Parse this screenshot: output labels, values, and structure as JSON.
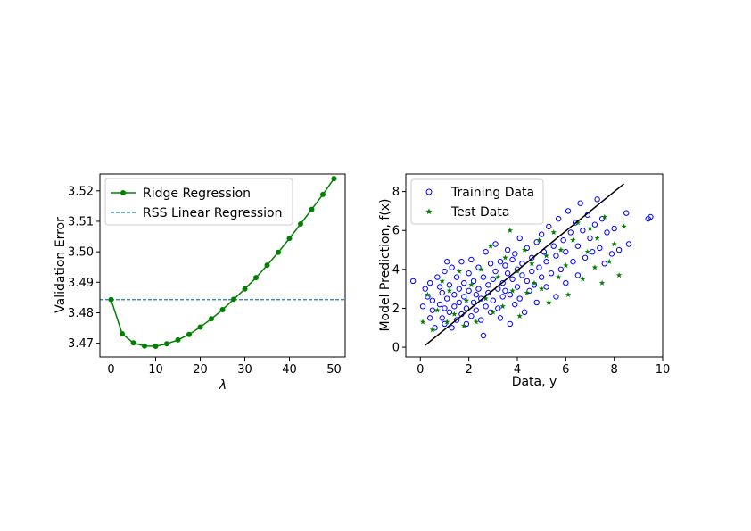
{
  "chart_data": [
    {
      "type": "line",
      "title": "",
      "xlabel": "λ",
      "ylabel": "Validation Error",
      "xlim": [
        -2.5,
        52.5
      ],
      "ylim": [
        3.4655,
        3.5255
      ],
      "xticks": [
        0,
        10,
        20,
        30,
        40,
        50
      ],
      "yticks": [
        3.47,
        3.48,
        3.49,
        3.5,
        3.51,
        3.52
      ],
      "xtick_labels": [
        "0",
        "10",
        "20",
        "30",
        "40",
        "50"
      ],
      "ytick_labels": [
        "3.47",
        "3.48",
        "3.49",
        "3.50",
        "3.51",
        "3.52"
      ],
      "grid": false,
      "legend_position": "upper-left",
      "series": [
        {
          "name": "Ridge Regression",
          "style": "solid line with circle markers",
          "color": "#008000",
          "x": [
            0,
            2.5,
            5,
            7.5,
            10,
            12.5,
            15,
            17.5,
            20,
            22.5,
            25,
            27.5,
            30,
            32.5,
            35,
            37.5,
            40,
            42.5,
            45,
            47.5,
            50
          ],
          "y": [
            3.4843,
            3.4731,
            3.4701,
            3.4691,
            3.469,
            3.4698,
            3.4711,
            3.4729,
            3.4753,
            3.478,
            3.481,
            3.4844,
            3.4878,
            3.4915,
            3.4956,
            3.4998,
            3.5044,
            3.5091,
            3.5139,
            3.5188,
            3.524
          ]
        },
        {
          "name": "RSS Linear Regression",
          "style": "dashed horizontal line",
          "color": "#1f77b4",
          "y": 3.4843
        }
      ]
    },
    {
      "type": "scatter",
      "title": "",
      "xlabel": "Data, y",
      "ylabel": "Model Prediction, f(x)",
      "xlim": [
        -0.6,
        10.0
      ],
      "ylim": [
        -0.5,
        8.9
      ],
      "xticks": [
        0,
        2,
        4,
        6,
        8,
        10
      ],
      "yticks": [
        0,
        2,
        4,
        6,
        8
      ],
      "xtick_labels": [
        "0",
        "2",
        "4",
        "6",
        "8",
        "10"
      ],
      "ytick_labels": [
        "0",
        "2",
        "4",
        "6",
        "8"
      ],
      "grid": false,
      "legend_position": "upper-left",
      "series": [
        {
          "name": "Training Data",
          "marker": "open circle",
          "color": "#0000ff",
          "points": [
            [
              -0.3,
              3.4
            ],
            [
              0.1,
              2.1
            ],
            [
              0.2,
              3.0
            ],
            [
              0.3,
              2.6
            ],
            [
              0.4,
              1.5
            ],
            [
              0.4,
              3.3
            ],
            [
              0.5,
              1.9
            ],
            [
              0.5,
              2.4
            ],
            [
              0.6,
              1.0
            ],
            [
              0.7,
              3.6
            ],
            [
              0.8,
              2.2
            ],
            [
              0.8,
              3.1
            ],
            [
              0.9,
              1.5
            ],
            [
              0.9,
              2.8
            ],
            [
              1.0,
              1.2
            ],
            [
              1.0,
              2.0
            ],
            [
              1.0,
              3.9
            ],
            [
              1.1,
              4.4
            ],
            [
              1.1,
              2.5
            ],
            [
              1.2,
              1.8
            ],
            [
              1.2,
              3.2
            ],
            [
              1.3,
              1.0
            ],
            [
              1.3,
              4.1
            ],
            [
              1.4,
              2.7
            ],
            [
              1.4,
              2.1
            ],
            [
              1.5,
              3.6
            ],
            [
              1.5,
              1.4
            ],
            [
              1.6,
              2.3
            ],
            [
              1.6,
              3.0
            ],
            [
              1.7,
              4.4
            ],
            [
              1.7,
              1.7
            ],
            [
              1.8,
              2.6
            ],
            [
              1.8,
              3.3
            ],
            [
              1.9,
              1.2
            ],
            [
              1.9,
              2.0
            ],
            [
              2.0,
              3.8
            ],
            [
              2.0,
              2.9
            ],
            [
              2.1,
              1.6
            ],
            [
              2.1,
              4.5
            ],
            [
              2.2,
              2.3
            ],
            [
              2.2,
              3.4
            ],
            [
              2.3,
              1.9
            ],
            [
              2.3,
              2.7
            ],
            [
              2.4,
              4.1
            ],
            [
              2.4,
              3.0
            ],
            [
              2.5,
              1.4
            ],
            [
              2.5,
              2.5
            ],
            [
              2.6,
              3.6
            ],
            [
              2.6,
              0.6
            ],
            [
              2.7,
              2.1
            ],
            [
              2.7,
              4.9
            ],
            [
              2.8,
              3.2
            ],
            [
              2.8,
              2.8
            ],
            [
              2.9,
              1.8
            ],
            [
              2.9,
              4.3
            ],
            [
              3.0,
              3.5
            ],
            [
              3.0,
              2.4
            ],
            [
              3.1,
              5.3
            ],
            [
              3.1,
              3.9
            ],
            [
              3.2,
              2.0
            ],
            [
              3.2,
              3.0
            ],
            [
              3.3,
              4.4
            ],
            [
              3.3,
              1.5
            ],
            [
              3.4,
              3.3
            ],
            [
              3.4,
              2.6
            ],
            [
              3.5,
              4.2
            ],
            [
              3.5,
              2.9
            ],
            [
              3.6,
              5.0
            ],
            [
              3.6,
              3.8
            ],
            [
              3.7,
              1.2
            ],
            [
              3.7,
              2.7
            ],
            [
              3.8,
              4.5
            ],
            [
              3.8,
              3.5
            ],
            [
              3.9,
              2.2
            ],
            [
              3.9,
              4.8
            ],
            [
              4.0,
              3.1
            ],
            [
              4.0,
              4.0
            ],
            [
              4.1,
              5.6
            ],
            [
              4.1,
              2.5
            ],
            [
              4.2,
              3.7
            ],
            [
              4.2,
              4.3
            ],
            [
              4.3,
              1.8
            ],
            [
              4.4,
              3.4
            ],
            [
              4.4,
              5.1
            ],
            [
              4.5,
              2.9
            ],
            [
              4.6,
              4.6
            ],
            [
              4.6,
              3.9
            ],
            [
              4.7,
              3.2
            ],
            [
              4.8,
              5.4
            ],
            [
              4.8,
              2.3
            ],
            [
              4.9,
              4.1
            ],
            [
              5.0,
              3.6
            ],
            [
              5.0,
              5.8
            ],
            [
              5.1,
              4.9
            ],
            [
              5.2,
              3.1
            ],
            [
              5.2,
              4.4
            ],
            [
              5.3,
              6.2
            ],
            [
              5.4,
              3.8
            ],
            [
              5.5,
              5.2
            ],
            [
              5.6,
              4.7
            ],
            [
              5.6,
              2.6
            ],
            [
              5.7,
              6.6
            ],
            [
              5.8,
              4.0
            ],
            [
              5.9,
              5.5
            ],
            [
              6.0,
              3.3
            ],
            [
              6.0,
              4.9
            ],
            [
              6.1,
              7.0
            ],
            [
              6.2,
              5.9
            ],
            [
              6.3,
              4.4
            ],
            [
              6.4,
              6.4
            ],
            [
              6.5,
              3.7
            ],
            [
              6.5,
              5.2
            ],
            [
              6.6,
              7.4
            ],
            [
              6.7,
              6.0
            ],
            [
              6.8,
              4.6
            ],
            [
              6.9,
              6.8
            ],
            [
              7.0,
              5.6
            ],
            [
              7.1,
              4.9
            ],
            [
              7.2,
              6.3
            ],
            [
              7.3,
              7.6
            ],
            [
              7.4,
              5.1
            ],
            [
              7.5,
              6.6
            ],
            [
              7.6,
              4.3
            ],
            [
              7.7,
              5.9
            ],
            [
              7.9,
              4.8
            ],
            [
              8.0,
              6.1
            ],
            [
              8.2,
              5.0
            ],
            [
              8.5,
              6.9
            ],
            [
              8.6,
              5.3
            ],
            [
              9.4,
              6.6
            ],
            [
              9.5,
              6.7
            ]
          ]
        },
        {
          "name": "Test Data",
          "marker": "filled star",
          "color": "#008000",
          "points": [
            [
              0.1,
              1.3
            ],
            [
              0.3,
              2.7
            ],
            [
              0.5,
              0.9
            ],
            [
              0.7,
              1.9
            ],
            [
              0.9,
              3.4
            ],
            [
              1.1,
              1.3
            ],
            [
              1.2,
              2.9
            ],
            [
              1.4,
              1.7
            ],
            [
              1.6,
              3.9
            ],
            [
              1.8,
              1.1
            ],
            [
              1.9,
              2.4
            ],
            [
              2.1,
              3.2
            ],
            [
              2.3,
              1.3
            ],
            [
              2.5,
              4.0
            ],
            [
              2.7,
              2.5
            ],
            [
              2.9,
              5.2
            ],
            [
              3.0,
              1.8
            ],
            [
              3.2,
              3.6
            ],
            [
              3.4,
              2.1
            ],
            [
              3.5,
              4.6
            ],
            [
              3.7,
              6.0
            ],
            [
              3.8,
              2.9
            ],
            [
              4.0,
              3.9
            ],
            [
              4.1,
              1.6
            ],
            [
              4.3,
              5.0
            ],
            [
              4.4,
              2.8
            ],
            [
              4.6,
              4.3
            ],
            [
              4.7,
              3.3
            ],
            [
              4.9,
              5.5
            ],
            [
              5.0,
              3.0
            ],
            [
              5.2,
              4.7
            ],
            [
              5.3,
              2.3
            ],
            [
              5.5,
              5.9
            ],
            [
              5.7,
              3.6
            ],
            [
              5.8,
              5.0
            ],
            [
              6.0,
              4.2
            ],
            [
              6.1,
              2.7
            ],
            [
              6.3,
              5.5
            ],
            [
              6.5,
              6.4
            ],
            [
              6.7,
              3.5
            ],
            [
              6.9,
              4.9
            ],
            [
              7.0,
              6.1
            ],
            [
              7.2,
              4.1
            ],
            [
              7.3,
              5.6
            ],
            [
              7.5,
              3.3
            ],
            [
              7.6,
              6.7
            ],
            [
              7.8,
              4.4
            ],
            [
              8.0,
              5.3
            ],
            [
              8.2,
              3.7
            ],
            [
              8.4,
              6.2
            ]
          ]
        },
        {
          "name": "",
          "style": "solid reference line",
          "color": "#000000",
          "x": [
            0.2,
            8.4
          ],
          "y": [
            0.1,
            8.4
          ]
        }
      ]
    }
  ]
}
